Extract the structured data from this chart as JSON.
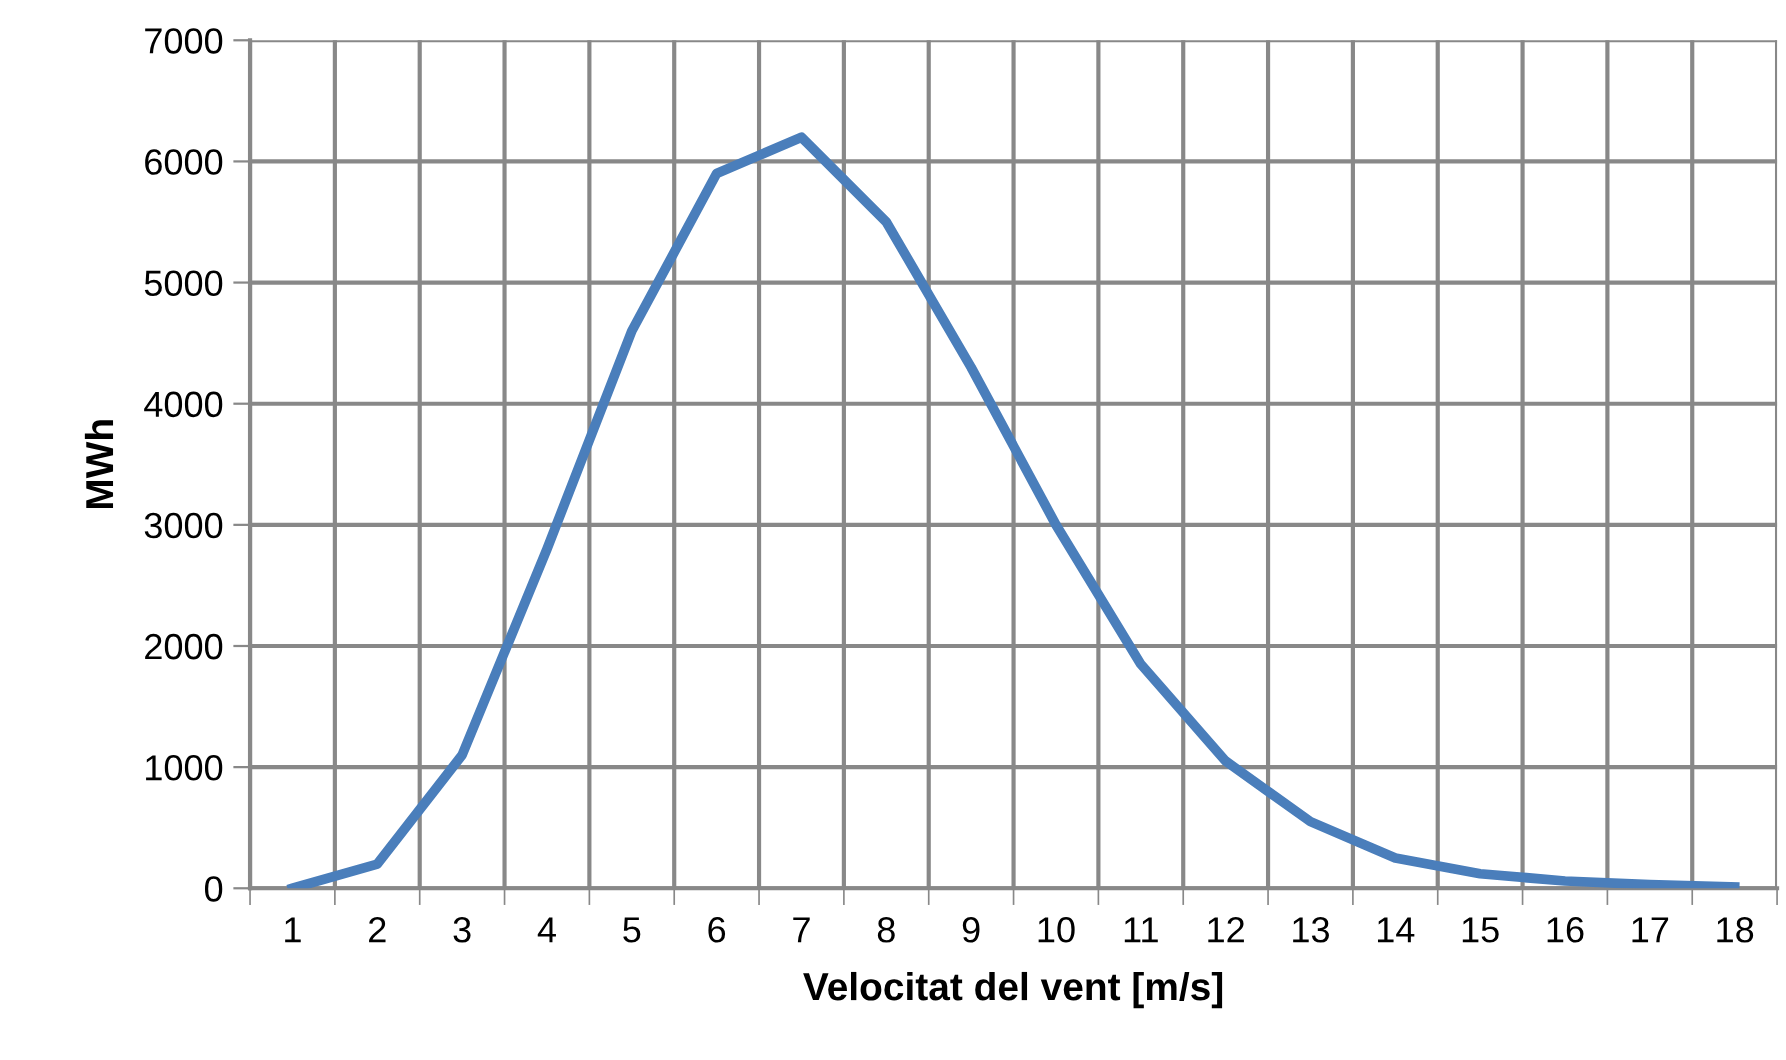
{
  "chart_data": {
    "type": "line",
    "xlabel": "Velocitat del vent [m/s]",
    "ylabel": "MWh",
    "categories": [
      "1",
      "2",
      "3",
      "4",
      "5",
      "6",
      "7",
      "8",
      "9",
      "10",
      "11",
      "12",
      "13",
      "14",
      "15",
      "16",
      "17",
      "18"
    ],
    "series": [
      {
        "color": "#4a7ebb",
        "values": [
          0,
          200,
          1100,
          2800,
          4600,
          5900,
          6200,
          5500,
          4300,
          3000,
          1850,
          1050,
          550,
          250,
          120,
          60,
          30,
          10
        ]
      }
    ],
    "ylim": [
      0,
      7000
    ],
    "yticks": [
      0,
      1000,
      2000,
      3000,
      4000,
      5000,
      6000,
      7000
    ],
    "grid": true,
    "marker": "none",
    "line_style": "solid"
  }
}
